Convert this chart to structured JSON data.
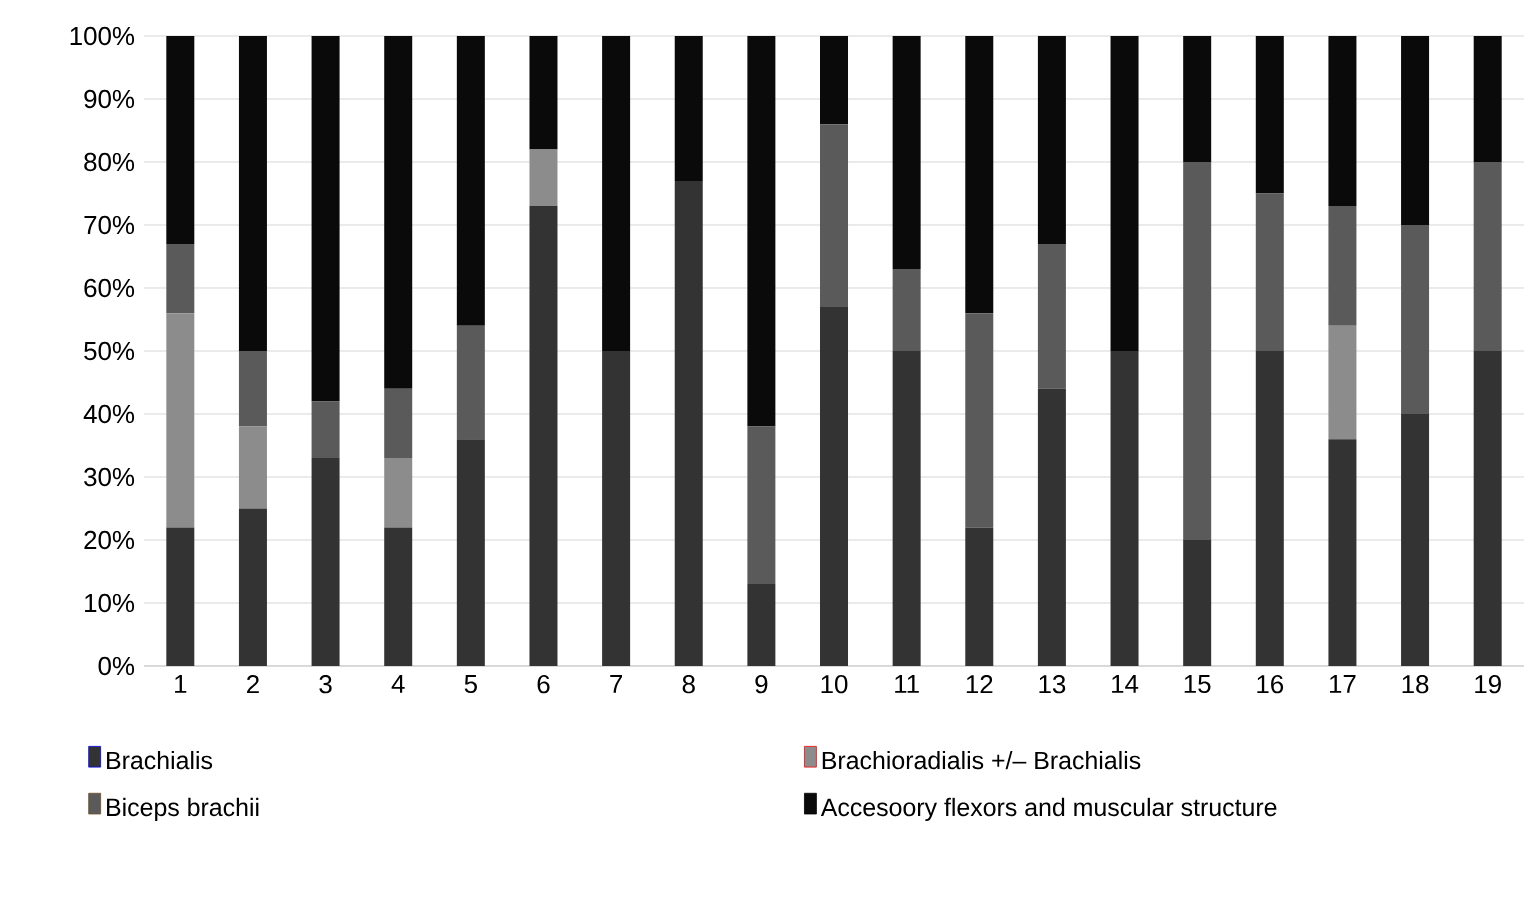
{
  "chart_data": {
    "type": "bar",
    "stacked": true,
    "grid": "y",
    "legend": "bottom",
    "categories": [
      "1",
      "2",
      "3",
      "4",
      "5",
      "6",
      "7",
      "8",
      "9",
      "10",
      "11",
      "12",
      "13",
      "14",
      "15",
      "16",
      "17",
      "18",
      "19"
    ],
    "ylim": [
      0,
      100
    ],
    "yticks": [
      {
        "value": 0,
        "label": "0%"
      },
      {
        "value": 10,
        "label": "10%"
      },
      {
        "value": 20,
        "label": "20%"
      },
      {
        "value": 30,
        "label": "30%"
      },
      {
        "value": 40,
        "label": "40%"
      },
      {
        "value": 50,
        "label": "50%"
      },
      {
        "value": 60,
        "label": "60%"
      },
      {
        "value": 70,
        "label": "70%"
      },
      {
        "value": 80,
        "label": "80%"
      },
      {
        "value": 90,
        "label": "90%"
      },
      {
        "value": 100,
        "label": "100%"
      }
    ],
    "series": [
      {
        "name": "Brachialis",
        "color": "#333333",
        "values": [
          22,
          25,
          33,
          22,
          36,
          73,
          50,
          77,
          13,
          57,
          50,
          22,
          44,
          50,
          20,
          50,
          36,
          40,
          50
        ]
      },
      {
        "name": "Brachioradialis +/– Brachialis",
        "color": "#8c8c8c",
        "values": [
          34,
          13,
          0,
          11,
          0,
          9,
          0,
          0,
          0,
          0,
          0,
          0,
          0,
          0,
          0,
          0,
          18,
          0,
          0
        ]
      },
      {
        "name": "Biceps brachii",
        "color": "#5a5a5a",
        "values": [
          11,
          12,
          9,
          11,
          18,
          0,
          0,
          0,
          25,
          29,
          13,
          34,
          23,
          0,
          60,
          25,
          19,
          30,
          30
        ]
      },
      {
        "name": "Accesoory flexors and muscular structure",
        "color": "#0a0a0a",
        "values": [
          33,
          50,
          58,
          56,
          46,
          18,
          50,
          23,
          62,
          14,
          37,
          44,
          33,
          50,
          20,
          25,
          27,
          30,
          20
        ]
      }
    ]
  }
}
